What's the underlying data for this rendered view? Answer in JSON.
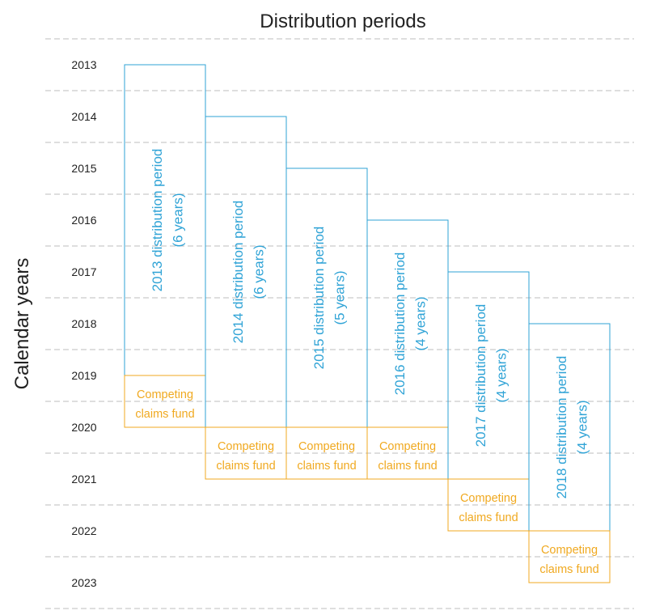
{
  "title": "Distribution periods",
  "y_axis_label": "Calendar years",
  "colors": {
    "period": "#2fa3d6",
    "fund": "#f0a920",
    "gridline": "#bdbdbd",
    "text": "#222222"
  },
  "years": [
    "2013",
    "2014",
    "2015",
    "2016",
    "2017",
    "2018",
    "2019",
    "2020",
    "2021",
    "2022",
    "2023"
  ],
  "periods": [
    {
      "start_year": 2013,
      "years": 6,
      "line1": "2013 distribution period",
      "line2": "(6 years)",
      "fund_line1": "Competing",
      "fund_line2": "claims fund"
    },
    {
      "start_year": 2014,
      "years": 6,
      "line1": "2014 distribution period",
      "line2": "(6 years)",
      "fund_line1": "Competing",
      "fund_line2": "claims fund"
    },
    {
      "start_year": 2015,
      "years": 5,
      "line1": "2015 distribution period",
      "line2": "(5 years)",
      "fund_line1": "Competing",
      "fund_line2": "claims fund"
    },
    {
      "start_year": 2016,
      "years": 4,
      "line1": "2016 distribution period",
      "line2": "(4 years)",
      "fund_line1": "Competing",
      "fund_line2": "claims fund"
    },
    {
      "start_year": 2017,
      "years": 4,
      "line1": "2017 distribution period",
      "line2": "(4 years)",
      "fund_line1": "Competing",
      "fund_line2": "claims fund"
    },
    {
      "start_year": 2018,
      "years": 4,
      "line1": "2018 distribution period",
      "line2": "(4 years)",
      "fund_line1": "Competing",
      "fund_line2": "claims fund"
    }
  ]
}
